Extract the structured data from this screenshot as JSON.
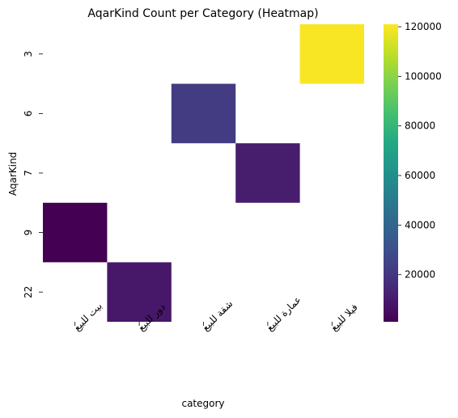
{
  "chart_data": {
    "type": "heatmap",
    "title": "AqarKind Count per Category (Heatmap)",
    "xlabel": "category",
    "ylabel": "AqarKind",
    "x_categories": [
      "بيت للبيع",
      "دور للبيع",
      "شقة للبيع",
      "عمارة للبيع",
      "فيلا للبيع"
    ],
    "y_categories": [
      "3",
      "6",
      "7",
      "9",
      "22"
    ],
    "cells": [
      {
        "x": "فيلا للبيع",
        "y": "3",
        "value": 120000
      },
      {
        "x": "شقة للبيع",
        "y": "6",
        "value": 22000
      },
      {
        "x": "عمارة للبيع",
        "y": "7",
        "value": 10500
      },
      {
        "x": "بيت للبيع",
        "y": "9",
        "value": 1000
      },
      {
        "x": "دور للبيع",
        "y": "22",
        "value": 8500
      }
    ],
    "colorbar": {
      "colormap": "viridis",
      "range": [
        1000,
        121000
      ],
      "ticks": [
        20000,
        40000,
        60000,
        80000,
        100000,
        120000
      ],
      "tick_labels": [
        "20000",
        "40000",
        "60000",
        "80000",
        "100000",
        "120000"
      ]
    },
    "grid": false
  }
}
